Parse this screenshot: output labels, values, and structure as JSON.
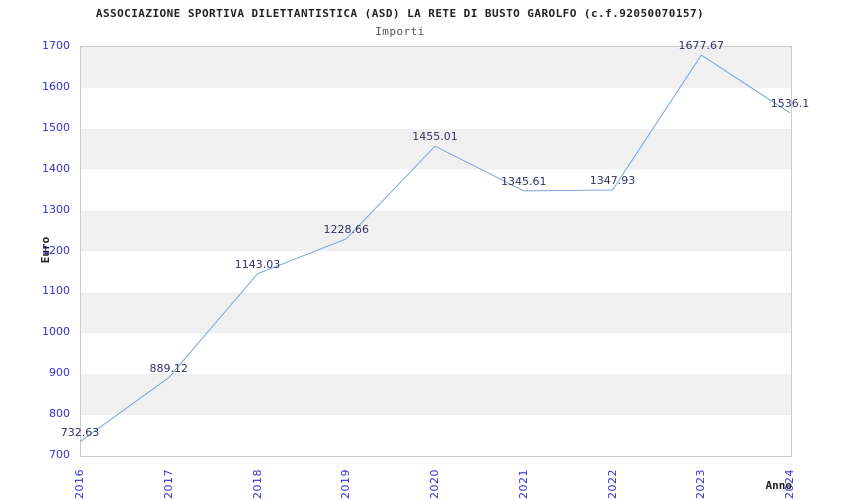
{
  "header": {
    "title": "ASSOCIAZIONE SPORTIVA DILETTANTISTICA (ASD) LA RETE DI BUSTO GAROLFO (c.f.92050070157)",
    "subtitle": "Importi"
  },
  "chart_data": {
    "type": "line",
    "title": "ASSOCIAZIONE SPORTIVA DILETTANTISTICA (ASD) LA RETE DI BUSTO GAROLFO (c.f.92050070157)",
    "subtitle": "Importi",
    "xlabel": "Anno",
    "ylabel": "Euro",
    "x": [
      "2016",
      "2017",
      "2018",
      "2019",
      "2020",
      "2021",
      "2022",
      "2023",
      "2024"
    ],
    "values": [
      732.63,
      889.12,
      1143.03,
      1228.66,
      1455.01,
      1345.61,
      1347.93,
      1677.67,
      1536.1
    ],
    "point_labels": [
      "732.63",
      "889.12",
      "1143.03",
      "1228.66",
      "1455.01",
      "1345.61",
      "1347.93",
      "1677.67",
      "1536.1"
    ],
    "ylim": [
      700,
      1700
    ],
    "ytick_step": 100,
    "grid": "alternating-horizontal-bands",
    "legend": "none",
    "colors": {
      "line": "#7aa6de",
      "axis_tick_text": "#3333cc",
      "point_label_text": "#333366",
      "band": "#f0f0f0",
      "plot_border": "#cccccc",
      "title_text": "#222222",
      "subtitle_text": "#555555"
    }
  }
}
